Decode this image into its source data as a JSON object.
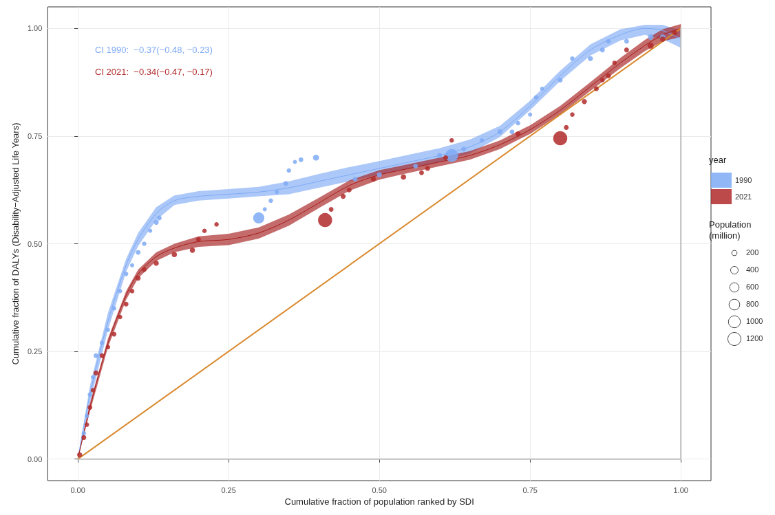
{
  "chart_data": {
    "type": "bubble",
    "xlabel": "Cumulative fraction of population ranked by SDI",
    "ylabel": "Cumulative fraction of DALYs (Disability−Adjusted Life Years)",
    "legend_title": "year",
    "legend": "right",
    "grid": true,
    "xlim": [
      -0.05,
      1.05
    ],
    "ylim": [
      -0.05,
      1.05
    ],
    "xticks": [
      {
        "value": 0,
        "label": "0.00"
      },
      {
        "value": 0.25,
        "label": "0.25"
      },
      {
        "value": 0.5,
        "label": "0.50"
      },
      {
        "value": 0.75,
        "label": "0.75"
      },
      {
        "value": 1,
        "label": "1.00"
      }
    ],
    "yticks": [
      {
        "value": 0,
        "label": "0.00"
      },
      {
        "value": 0.25,
        "label": "0.25"
      },
      {
        "value": 0.5,
        "label": "0.50"
      },
      {
        "value": 0.75,
        "label": "0.75"
      },
      {
        "value": 1,
        "label": "1.00"
      }
    ],
    "size_legend": [
      200,
      400,
      600,
      800,
      1000,
      1200
    ],
    "annotations": [
      "CI 1990:  −0.37(−0.48, −0.23)",
      "CI 2021:  −0.34(−0.47, −0.17)",
      "Population\n(million)"
    ],
    "series": [
      {
        "type": "line",
        "color": "#7faaf5",
        "x": [
          0,
          0.02,
          0.05,
          0.08,
          0.1,
          0.13,
          0.16,
          0.2,
          0.25,
          0.3,
          0.35,
          0.4,
          0.45,
          0.5,
          0.55,
          0.6,
          0.65,
          0.7,
          0.75,
          0.8,
          0.85,
          0.9,
          0.94,
          0.97,
          1.0
        ],
        "values": [
          0,
          0.15,
          0.32,
          0.45,
          0.51,
          0.57,
          0.6,
          0.61,
          0.615,
          0.62,
          0.63,
          0.645,
          0.66,
          0.675,
          0.69,
          0.705,
          0.725,
          0.76,
          0.82,
          0.89,
          0.95,
          0.985,
          1.0,
          0.995,
          0.975
        ],
        "lower": [
          0,
          0.13,
          0.3,
          0.435,
          0.495,
          0.555,
          0.59,
          0.6,
          0.605,
          0.61,
          0.615,
          0.63,
          0.645,
          0.66,
          0.675,
          0.69,
          0.71,
          0.748,
          0.81,
          0.878,
          0.937,
          0.972,
          0.985,
          0.975,
          0.955
        ],
        "upper": [
          0,
          0.17,
          0.34,
          0.465,
          0.525,
          0.585,
          0.612,
          0.622,
          0.627,
          0.632,
          0.645,
          0.662,
          0.678,
          0.692,
          0.707,
          0.722,
          0.742,
          0.774,
          0.832,
          0.902,
          0.963,
          0.998,
          1.008,
          1.008,
          0.995
        ]
      },
      {
        "type": "line",
        "color": "#a51c1c",
        "x": [
          0,
          0.02,
          0.05,
          0.08,
          0.1,
          0.13,
          0.16,
          0.2,
          0.25,
          0.3,
          0.35,
          0.4,
          0.45,
          0.5,
          0.55,
          0.6,
          0.65,
          0.7,
          0.75,
          0.8,
          0.85,
          0.9,
          0.94,
          0.97,
          1.0
        ],
        "values": [
          0,
          0.12,
          0.27,
          0.38,
          0.43,
          0.47,
          0.49,
          0.505,
          0.51,
          0.525,
          0.555,
          0.595,
          0.635,
          0.66,
          0.675,
          0.69,
          0.705,
          0.73,
          0.765,
          0.81,
          0.865,
          0.92,
          0.96,
          0.985,
          1.0
        ],
        "lower": [
          0,
          0.11,
          0.26,
          0.37,
          0.42,
          0.46,
          0.48,
          0.493,
          0.497,
          0.512,
          0.542,
          0.583,
          0.623,
          0.649,
          0.665,
          0.68,
          0.695,
          0.72,
          0.755,
          0.8,
          0.855,
          0.908,
          0.947,
          0.97,
          0.98
        ],
        "upper": [
          0,
          0.13,
          0.28,
          0.39,
          0.44,
          0.48,
          0.5,
          0.517,
          0.523,
          0.538,
          0.568,
          0.607,
          0.647,
          0.671,
          0.685,
          0.7,
          0.715,
          0.74,
          0.775,
          0.82,
          0.875,
          0.932,
          0.973,
          0.998,
          1.01
        ]
      },
      {
        "type": "line",
        "color": "#d98a2e",
        "x": [
          0,
          1
        ],
        "values": [
          0,
          1
        ]
      },
      {
        "type": "line",
        "color": "#bdbdbd",
        "x": [
          0,
          1,
          1
        ],
        "values": [
          0,
          0,
          1
        ]
      },
      {
        "name": "1990",
        "color": "#7faaf5",
        "x": [
          0.01,
          0.015,
          0.02,
          0.025,
          0.03,
          0.04,
          0.05,
          0.06,
          0.07,
          0.08,
          0.09,
          0.1,
          0.11,
          0.12,
          0.13,
          0.135,
          0.3,
          0.31,
          0.32,
          0.33,
          0.345,
          0.35,
          0.36,
          0.37,
          0.395,
          0.46,
          0.5,
          0.56,
          0.6,
          0.62,
          0.64,
          0.67,
          0.7,
          0.72,
          0.73,
          0.75,
          0.76,
          0.77,
          0.8,
          0.82,
          0.85,
          0.87,
          0.88,
          0.91,
          0.95,
          0.97
        ],
        "values": [
          0.06,
          0.1,
          0.15,
          0.19,
          0.24,
          0.27,
          0.3,
          0.35,
          0.39,
          0.43,
          0.45,
          0.48,
          0.5,
          0.53,
          0.55,
          0.56,
          0.56,
          0.58,
          0.6,
          0.62,
          0.64,
          0.67,
          0.69,
          0.695,
          0.7,
          0.65,
          0.66,
          0.68,
          0.705,
          0.705,
          0.72,
          0.74,
          0.76,
          0.76,
          0.78,
          0.8,
          0.84,
          0.86,
          0.88,
          0.93,
          0.93,
          0.95,
          0.97,
          0.97,
          0.98,
          0.98
        ],
        "sizes": [
          140,
          120,
          140,
          120,
          160,
          140,
          120,
          140,
          120,
          140,
          120,
          160,
          140,
          120,
          180,
          160,
          870,
          120,
          140,
          120,
          160,
          140,
          120,
          160,
          250,
          160,
          180,
          160,
          180,
          1150,
          160,
          140,
          180,
          160,
          140,
          120,
          140,
          120,
          160,
          140,
          180,
          160,
          140,
          160,
          220,
          190
        ]
      },
      {
        "name": "2021",
        "color": "#b22a2a",
        "x": [
          0.003,
          0.01,
          0.015,
          0.02,
          0.025,
          0.03,
          0.04,
          0.05,
          0.06,
          0.07,
          0.08,
          0.09,
          0.1,
          0.11,
          0.13,
          0.16,
          0.19,
          0.2,
          0.21,
          0.23,
          0.41,
          0.42,
          0.44,
          0.45,
          0.49,
          0.54,
          0.57,
          0.58,
          0.61,
          0.62,
          0.73,
          0.8,
          0.81,
          0.82,
          0.84,
          0.86,
          0.87,
          0.88,
          0.89,
          0.91,
          0.95,
          0.97,
          0.99
        ],
        "values": [
          0.01,
          0.05,
          0.08,
          0.12,
          0.16,
          0.2,
          0.24,
          0.26,
          0.29,
          0.33,
          0.36,
          0.39,
          0.42,
          0.44,
          0.455,
          0.475,
          0.485,
          0.51,
          0.53,
          0.545,
          0.555,
          0.58,
          0.61,
          0.625,
          0.65,
          0.655,
          0.665,
          0.675,
          0.7,
          0.74,
          0.755,
          0.745,
          0.77,
          0.8,
          0.83,
          0.86,
          0.88,
          0.89,
          0.92,
          0.95,
          0.96,
          0.975,
          0.99
        ],
        "sizes": [
          180,
          160,
          140,
          160,
          140,
          180,
          160,
          140,
          160,
          140,
          160,
          140,
          180,
          160,
          190,
          200,
          190,
          160,
          140,
          140,
          1400,
          160,
          180,
          160,
          180,
          200,
          160,
          180,
          160,
          140,
          180,
          1400,
          160,
          140,
          180,
          160,
          140,
          160,
          140,
          160,
          250,
          200,
          180
        ]
      }
    ]
  }
}
